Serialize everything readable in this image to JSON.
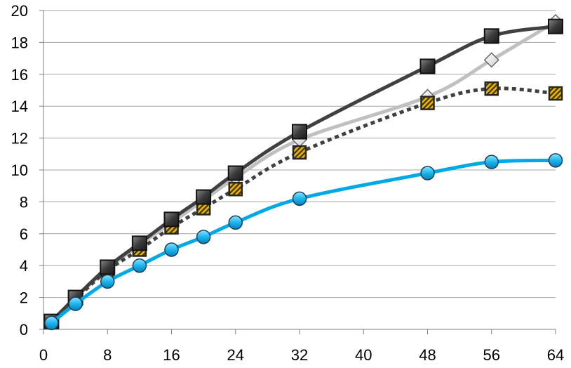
{
  "chart_data": {
    "type": "line",
    "title": "",
    "xlabel": "",
    "ylabel": "",
    "xlim": [
      0,
      64
    ],
    "ylim": [
      0,
      20
    ],
    "x_ticks": [
      0,
      8,
      16,
      24,
      32,
      40,
      48,
      56,
      64
    ],
    "y_ticks": [
      0,
      2,
      4,
      6,
      8,
      10,
      12,
      14,
      16,
      18,
      20
    ],
    "x_tick_labels": [
      "0",
      "8",
      "16",
      "24",
      "32",
      "40",
      "48",
      "56",
      "64"
    ],
    "y_tick_labels": [
      "0",
      "2",
      "4",
      "6",
      "8",
      "10",
      "12",
      "14",
      "16",
      "18",
      "20"
    ],
    "grid": "horizontal",
    "legend": "none",
    "series": [
      {
        "color": "#c0c0c0",
        "line_style": "solid",
        "marker": "diamond-icon",
        "x": [
          1,
          4,
          8,
          12,
          16,
          20,
          24,
          32,
          48,
          56,
          64
        ],
        "y": [
          0.5,
          2.0,
          3.8,
          5.3,
          6.7,
          8.1,
          9.5,
          11.9,
          14.6,
          16.9,
          19.3
        ]
      },
      {
        "color": "#404040",
        "line_style": "dotted",
        "marker": "yellow-striped-square-icon",
        "x": [
          1,
          4,
          8,
          12,
          16,
          20,
          24,
          32,
          48,
          56,
          64
        ],
        "y": [
          0.5,
          1.9,
          3.7,
          5.0,
          6.4,
          7.6,
          8.8,
          11.1,
          14.2,
          15.1,
          14.8
        ]
      },
      {
        "color": "#404040",
        "line_style": "solid",
        "marker": "dark-square-icon",
        "x": [
          1,
          4,
          8,
          12,
          16,
          20,
          24,
          32,
          48,
          56,
          64
        ],
        "y": [
          0.5,
          2.0,
          3.9,
          5.4,
          6.9,
          8.3,
          9.8,
          12.4,
          16.5,
          18.4,
          19.0
        ]
      },
      {
        "color": "#00a9e6",
        "line_style": "solid",
        "marker": "blue-circle-icon",
        "x": [
          1,
          4,
          8,
          12,
          16,
          20,
          24,
          32,
          48,
          56,
          64
        ],
        "y": [
          0.4,
          1.6,
          3.0,
          4.0,
          5.0,
          5.8,
          6.7,
          8.2,
          9.8,
          10.5,
          10.6
        ]
      }
    ]
  }
}
